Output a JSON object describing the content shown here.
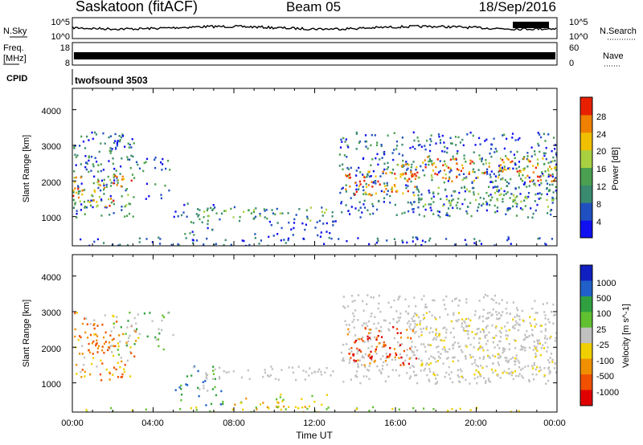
{
  "header": {
    "station": "Saskatoon (fitACF)",
    "beam": "Beam 05",
    "date": "18/Sep/2016"
  },
  "top_panels": {
    "nsky": {
      "label": "N.Sky",
      "ticks": [
        "10^5",
        "10^0"
      ]
    },
    "nsearch": {
      "label": "N.Search",
      "ticks": [
        "10^5",
        "10^0"
      ]
    },
    "freq": {
      "label_line1": "Freq.",
      "label_line2": "[MHz]",
      "ticks": [
        "18",
        "8"
      ]
    },
    "nave": {
      "label": "Nave",
      "ticks": [
        "60",
        "0"
      ]
    },
    "cpid": {
      "label": "CPID",
      "mode": "twofsound 3503"
    }
  },
  "colors": {
    "power_scale": [
      "#1010f0",
      "#2050c0",
      "#3a8a70",
      "#4aa050",
      "#a8d040",
      "#f0c000",
      "#f08000",
      "#e82000"
    ],
    "velocity_scale": [
      "#1020c0",
      "#2060c8",
      "#30a040",
      "#60c030",
      "#c0c0c0",
      "#f0d000",
      "#f09000",
      "#f05000",
      "#e00000"
    ]
  },
  "chart_data": [
    {
      "type": "heatmap",
      "name": "power",
      "xlabel": "",
      "ylabel": "Slant Range [km]",
      "xlim_hours": [
        0,
        24
      ],
      "ylim_km": [
        180,
        4600
      ],
      "yticks": [
        "1000",
        "2000",
        "3000",
        "4000"
      ],
      "colorbar": {
        "label": "Power [dB]",
        "ticks": [
          "28",
          "24",
          "20",
          "16",
          "12",
          "8",
          "4"
        ]
      }
    },
    {
      "type": "heatmap",
      "name": "velocity",
      "xlabel": "Time UT",
      "ylabel": "Slant Range [km]",
      "xlim_hours": [
        0,
        24
      ],
      "ylim_km": [
        180,
        4600
      ],
      "xticks": [
        "00:00",
        "04:00",
        "08:00",
        "12:00",
        "16:00",
        "20:00",
        "00:00"
      ],
      "yticks": [
        "1000",
        "2000",
        "3000",
        "4000"
      ],
      "colorbar": {
        "label": "Velocity [m s^-1]",
        "ticks": [
          "1000",
          "500",
          "100",
          "25",
          "-25",
          "-100",
          "-500",
          "-1000"
        ]
      }
    }
  ]
}
